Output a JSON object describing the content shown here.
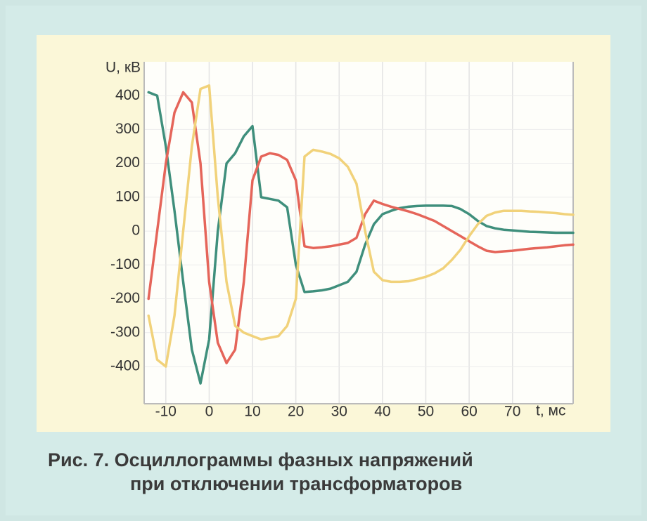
{
  "chart_data": {
    "type": "line",
    "ylabel": "U, кВ",
    "xlabel": "t, мс",
    "caption_lines": [
      "Рис. 7. Осциллограммы фазных напряжений",
      "при отключении трансформаторов"
    ],
    "x": [
      -14,
      -12,
      -10,
      -8,
      -6,
      -4,
      -2,
      0,
      2,
      4,
      6,
      8,
      10,
      12,
      14,
      16,
      18,
      20,
      22,
      24,
      26,
      28,
      30,
      32,
      34,
      36,
      38,
      40,
      42,
      44,
      46,
      48,
      50,
      52,
      54,
      56,
      58,
      60,
      62,
      64,
      66,
      68,
      70,
      72,
      74,
      76,
      78,
      80,
      82,
      84
    ],
    "series": [
      {
        "color": "#3f8f7c",
        "values": [
          410,
          400,
          250,
          60,
          -150,
          -350,
          -450,
          -320,
          0,
          200,
          230,
          280,
          310,
          100,
          95,
          90,
          70,
          -100,
          -180,
          -178,
          -175,
          -170,
          -160,
          -150,
          -120,
          -40,
          20,
          50,
          60,
          68,
          72,
          74,
          75,
          75,
          75,
          74,
          65,
          50,
          30,
          15,
          8,
          4,
          2,
          0,
          -2,
          -3,
          -4,
          -5,
          -5,
          -5
        ]
      },
      {
        "color": "#e5655a",
        "values": [
          -200,
          0,
          200,
          350,
          410,
          380,
          200,
          -150,
          -330,
          -390,
          -350,
          -150,
          150,
          220,
          230,
          225,
          210,
          150,
          -45,
          -50,
          -48,
          -45,
          -40,
          -35,
          -20,
          50,
          90,
          80,
          72,
          65,
          58,
          50,
          40,
          30,
          15,
          0,
          -15,
          -30,
          -45,
          -58,
          -62,
          -60,
          -58,
          -55,
          -52,
          -50,
          -48,
          -45,
          -42,
          -40
        ]
      },
      {
        "color": "#f1d27a",
        "values": [
          -250,
          -380,
          -400,
          -250,
          0,
          250,
          420,
          430,
          100,
          -150,
          -280,
          -300,
          -310,
          -320,
          -315,
          -310,
          -280,
          -200,
          220,
          240,
          235,
          228,
          215,
          190,
          140,
          0,
          -120,
          -145,
          -150,
          -150,
          -148,
          -142,
          -135,
          -125,
          -110,
          -85,
          -55,
          -15,
          20,
          45,
          55,
          60,
          60,
          60,
          58,
          57,
          55,
          53,
          50,
          48
        ]
      }
    ],
    "xlim": [
      -15,
      84
    ],
    "xticks": [
      -10,
      0,
      10,
      20,
      30,
      40,
      50,
      60,
      70
    ],
    "ylim": [
      -510,
      500
    ],
    "yticks": [
      -400,
      -300,
      -200,
      -100,
      0,
      100,
      200,
      300,
      400
    ],
    "grid": true
  }
}
